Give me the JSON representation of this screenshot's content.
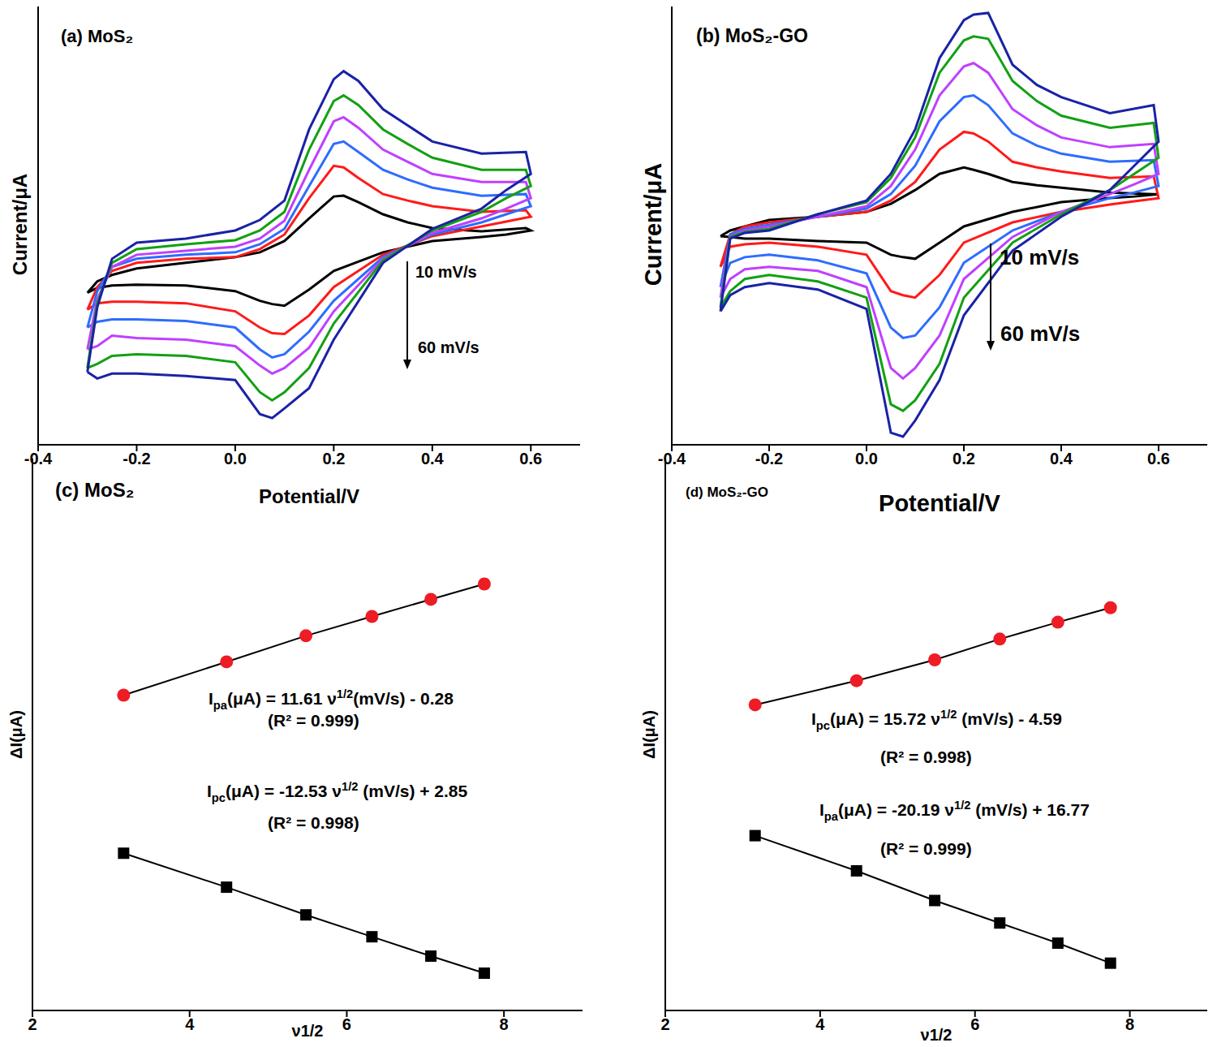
{
  "chart_data": [
    {
      "type": "line",
      "title": "(a) MoS₂",
      "x_label": "Potential/V",
      "y_label": "Current/μA",
      "xlim": [
        -0.4,
        0.7
      ],
      "xticks": [
        -0.4,
        -0.2,
        {
          "value": 0,
          "label": "0.0"
        },
        0.2,
        0.4,
        0.6
      ],
      "ylim": [
        -240,
        305
      ],
      "tick_labels": "x",
      "annotations": [
        {
          "text": "10 mV/s"
        },
        {
          "text": "60 mV/s"
        }
      ],
      "x": [
        -0.3,
        -0.28,
        -0.25,
        -0.2,
        -0.1,
        0,
        0.05,
        0.1,
        0.15,
        0.2,
        0.22,
        0.25,
        0.3,
        0.35,
        0.4,
        0.5,
        0.59,
        0.6,
        0.55,
        0.5,
        0.4,
        0.3,
        0.2,
        0.15,
        0.1,
        0.075,
        0.05,
        0,
        -0.1,
        -0.2,
        -0.25,
        -0.28,
        -0.3
      ],
      "series": [
        {
          "color": "#000000",
          "values": [
            -52,
            -38,
            -30,
            -22,
            -15,
            -8,
            -2,
            12,
            40,
            67,
            68,
            60,
            45,
            35,
            28,
            24,
            28,
            25,
            20,
            17,
            12,
            -2,
            -25,
            -48,
            -68,
            -66,
            -62,
            -50,
            -43,
            -42,
            -43,
            -46,
            -52
          ]
        },
        {
          "color": "#ff1a1a",
          "values": [
            -73,
            -45,
            -25,
            -15,
            -10,
            -8,
            2,
            20,
            65,
            105,
            103,
            90,
            70,
            62,
            55,
            48,
            50,
            42,
            36,
            30,
            18,
            -5,
            -45,
            -80,
            -103,
            -102,
            -95,
            -75,
            -65,
            -63,
            -63,
            -65,
            -73
          ]
        },
        {
          "color": "#2e6cff",
          "values": [
            -95,
            -50,
            -20,
            -10,
            -5,
            -2,
            8,
            27,
            80,
            132,
            135,
            122,
            100,
            88,
            78,
            68,
            70,
            55,
            45,
            35,
            20,
            -8,
            -62,
            -100,
            -128,
            -132,
            -122,
            -95,
            -87,
            -85,
            -85,
            -88,
            -95
          ]
        },
        {
          "color": "#bf40ff",
          "values": [
            -122,
            -60,
            -20,
            -5,
            0,
            5,
            15,
            37,
            100,
            160,
            165,
            152,
            125,
            110,
            95,
            85,
            85,
            65,
            52,
            40,
            22,
            -10,
            -75,
            -120,
            -145,
            -152,
            -142,
            -118,
            -110,
            -108,
            -105,
            -118,
            -122
          ]
        },
        {
          "color": "#13a013",
          "values": [
            -145,
            -65,
            -15,
            2,
            8,
            13,
            25,
            48,
            125,
            185,
            192,
            180,
            150,
            132,
            115,
            100,
            100,
            80,
            65,
            48,
            25,
            -12,
            -90,
            -145,
            -175,
            -185,
            -175,
            -138,
            -130,
            -128,
            -130,
            -140,
            -145
          ]
        },
        {
          "color": "#1a22a6",
          "values": [
            -150,
            -70,
            -10,
            10,
            15,
            25,
            38,
            62,
            150,
            212,
            222,
            210,
            175,
            155,
            135,
            120,
            122,
            95,
            75,
            52,
            27,
            -15,
            -110,
            -170,
            -195,
            -207,
            -202,
            -160,
            -155,
            -152,
            -152,
            -158,
            -150
          ]
        }
      ]
    },
    {
      "type": "line",
      "title": "(b) MoS₂-GO",
      "x_label": "Potential/V",
      "y_label": "Current/μA",
      "xlim": [
        -0.4,
        0.7
      ],
      "xticks": [
        -0.4,
        -0.2,
        {
          "value": 0,
          "label": "0.0"
        },
        0.2,
        0.4,
        0.6
      ],
      "ylim": [
        -260,
        285
      ],
      "tick_labels": "x",
      "annotations": [
        {
          "text": "10 mV/s"
        },
        {
          "text": "60 mV/s"
        }
      ],
      "x": [
        -0.3,
        -0.28,
        -0.25,
        -0.2,
        -0.1,
        0,
        0.05,
        0.1,
        0.15,
        0.2,
        0.22,
        0.25,
        0.3,
        0.35,
        0.4,
        0.5,
        0.59,
        0.6,
        0.55,
        0.5,
        0.4,
        0.3,
        0.2,
        0.15,
        0.1,
        0.075,
        0.05,
        0,
        -0.1,
        -0.2,
        -0.25,
        -0.28,
        -0.3
      ],
      "series": [
        {
          "color": "#000000",
          "values": [
            -2,
            5,
            10,
            18,
            22,
            28,
            38,
            55,
            75,
            83,
            80,
            75,
            65,
            61,
            58,
            52,
            50,
            50,
            47,
            45,
            40,
            28,
            10,
            -10,
            -30,
            -28,
            -25,
            -10,
            -8,
            -5,
            -5,
            -3,
            -2
          ]
        },
        {
          "color": "#ff1a1a",
          "values": [
            -40,
            0,
            10,
            15,
            22,
            28,
            42,
            65,
            105,
            127,
            125,
            115,
            90,
            83,
            78,
            70,
            72,
            45,
            41,
            37,
            28,
            15,
            -10,
            -50,
            -78,
            -75,
            -70,
            -25,
            -15,
            -10,
            -12,
            -15,
            -40
          ]
        },
        {
          "color": "#2e6cff",
          "values": [
            -65,
            0,
            7,
            12,
            22,
            32,
            50,
            85,
            140,
            170,
            172,
            160,
            125,
            110,
            100,
            90,
            92,
            60,
            52,
            45,
            28,
            5,
            -35,
            -90,
            -125,
            -128,
            -115,
            -48,
            -32,
            -25,
            -28,
            -35,
            -65
          ]
        },
        {
          "color": "#bf40ff",
          "values": [
            -78,
            -2,
            5,
            10,
            22,
            35,
            60,
            105,
            172,
            208,
            212,
            200,
            155,
            135,
            120,
            108,
            112,
            75,
            62,
            50,
            28,
            -3,
            -55,
            -125,
            -165,
            -178,
            -165,
            -65,
            -45,
            -40,
            -43,
            -55,
            -78
          ]
        },
        {
          "color": "#13a013",
          "values": [
            -90,
            -3,
            3,
            7,
            25,
            40,
            70,
            120,
            200,
            240,
            245,
            242,
            190,
            165,
            147,
            132,
            138,
            95,
            75,
            55,
            25,
            -10,
            -78,
            -160,
            -205,
            -218,
            -210,
            -78,
            -58,
            -50,
            -55,
            -70,
            -90
          ]
        },
        {
          "color": "#1a22a6",
          "values": [
            -95,
            -5,
            2,
            5,
            25,
            42,
            75,
            130,
            218,
            265,
            272,
            274,
            210,
            185,
            170,
            150,
            160,
            115,
            85,
            55,
            22,
            -20,
            -100,
            -180,
            -230,
            -250,
            -245,
            -92,
            -68,
            -60,
            -65,
            -75,
            -95
          ]
        }
      ]
    },
    {
      "type": "scatter",
      "title": "(c) MoS₂",
      "x_label": "ν1/2",
      "y_label": "ΔI(μA)",
      "xlim": [
        2,
        9
      ],
      "xticks": [
        2,
        4,
        6,
        8
      ],
      "ylim": [
        -115,
        150
      ],
      "tick_labels": "x",
      "annotations": [
        {
          "text": "Ipa(μA) = 11.61 ν1/2(mV/s) - 0.28"
        },
        {
          "text": "(R² = 0.999)"
        },
        {
          "text": "Ipc(μA) = -12.53 ν1/2 (mV/s) + 2.85"
        },
        {
          "text": "(R² = 0.998)"
        }
      ],
      "x": [
        3.16,
        4.47,
        5.48,
        6.32,
        7.07,
        7.75
      ],
      "series": [
        {
          "color": "#ee1c25",
          "marker": "circle",
          "line_style": "solid",
          "values": [
            36.4,
            52.4,
            64.9,
            74.2,
            82.4,
            89.8
          ]
        },
        {
          "color": "#000000",
          "marker": "square",
          "line_style": "solid",
          "values": [
            -39.5,
            -55.8,
            -69.1,
            -79.6,
            -88.9,
            -97.1
          ]
        }
      ]
    },
    {
      "type": "scatter",
      "title": "(d) MoS₂-GO",
      "x_label": "ν1/2",
      "y_label": "ΔI(μA)",
      "xlim": [
        2,
        9
      ],
      "xticks": [
        2,
        4,
        6,
        8
      ],
      "ylim": [
        -175,
        225
      ],
      "tick_labels": "x",
      "annotations": [
        {
          "text": "Ipc(μA) = 15.72 ν1/2 (mV/s) - 4.59"
        },
        {
          "text": "(R² = 0.998)"
        },
        {
          "text": "Ipa(μA) = -20.19 ν1/2 (mV/s) + 16.77"
        },
        {
          "text": "(R² = 0.999)"
        }
      ],
      "x": [
        3.16,
        4.47,
        5.48,
        6.32,
        7.07,
        7.75
      ],
      "series": [
        {
          "color": "#ee1c25",
          "marker": "circle",
          "line_style": "solid",
          "values": [
            46.5,
            64.0,
            79.1,
            94.2,
            106.4,
            116.9
          ]
        },
        {
          "color": "#000000",
          "marker": "square",
          "line_style": "solid",
          "values": [
            -48.3,
            -73.8,
            -95.3,
            -111.6,
            -126.2,
            -140.7
          ]
        }
      ]
    }
  ]
}
